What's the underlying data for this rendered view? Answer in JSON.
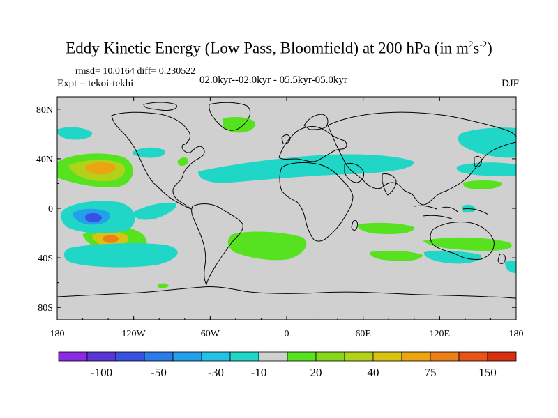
{
  "title": {
    "main": "Eddy Kinetic Energy (Low Pass, Bloomfield) at 200 hPa (in m",
    "sup1": "2",
    "mid": "s",
    "sup2": "-2",
    "end": ")"
  },
  "stats": {
    "rmsd": "rmsd= 10.0164 diff= 0.230522"
  },
  "experiment": "Expt = tekoi-tekhi",
  "period": "02.0kyr--02.0kyr - 05.5kyr-05.0kyr",
  "season": "DJF",
  "map": {
    "lon_range": [
      -180,
      180
    ],
    "lat_range": [
      -90,
      90
    ],
    "x_ticks": [
      {
        "value": -180,
        "label": "180"
      },
      {
        "value": -120,
        "label": "120W"
      },
      {
        "value": -60,
        "label": "60W"
      },
      {
        "value": 0,
        "label": "0"
      },
      {
        "value": 60,
        "label": "60E"
      },
      {
        "value": 120,
        "label": "120E"
      },
      {
        "value": 180,
        "label": "180"
      }
    ],
    "y_ticks": [
      {
        "value": 80,
        "label": "80N"
      },
      {
        "value": 40,
        "label": "40N"
      },
      {
        "value": 0,
        "label": "0"
      },
      {
        "value": -40,
        "label": "40S"
      },
      {
        "value": -80,
        "label": "80S"
      }
    ],
    "land_ocean_fill": "#d0d0d0",
    "coast_color": "#000000"
  },
  "colorbar": {
    "colors": [
      "#8a2be2",
      "#5a35d6",
      "#3a50e0",
      "#2a7ae8",
      "#22a0ea",
      "#22c2e6",
      "#20d6c6",
      "#d0d0d0",
      "#56e21e",
      "#86d61a",
      "#b2d21a",
      "#d8c410",
      "#eca510",
      "#ee7e18",
      "#e85418",
      "#d8300e"
    ],
    "labels": [
      {
        "boundary": 1.5,
        "text": "-100"
      },
      {
        "boundary": 3.5,
        "text": "-50"
      },
      {
        "boundary": 5.5,
        "text": "-30"
      },
      {
        "boundary": 7,
        "text": "-10"
      },
      {
        "boundary": 9,
        "text": "20"
      },
      {
        "boundary": 11,
        "text": "40"
      },
      {
        "boundary": 13,
        "text": "75"
      },
      {
        "boundary": 15,
        "text": "150"
      }
    ]
  }
}
